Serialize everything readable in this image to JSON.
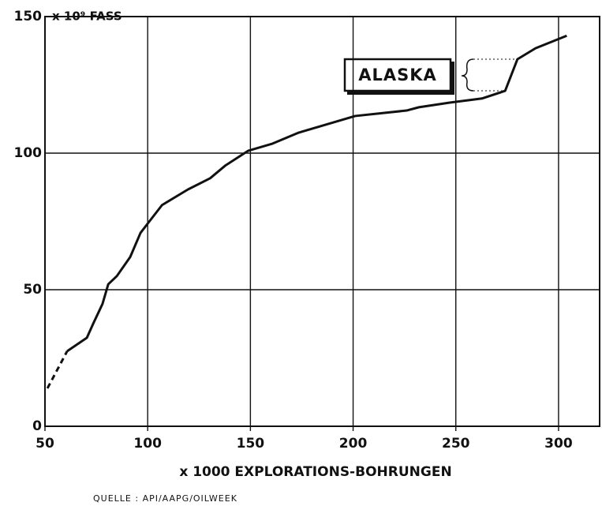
{
  "chart_data": {
    "type": "line",
    "y_label": "x 10⁹ FASS",
    "x_label": "x 1000 EXPLORATIONS-BOHRUNGEN",
    "source": "QUELLE : API/AAPG/OILWEEK",
    "annotation": "ALASKA",
    "xlim": [
      50,
      320
    ],
    "ylim": [
      0,
      150
    ],
    "xticks": [
      50,
      100,
      150,
      200,
      250,
      300
    ],
    "yticks": [
      0,
      50,
      100,
      150
    ],
    "grid": true,
    "series": [
      {
        "color": "#111111",
        "dashed": true,
        "x": [
          51.2,
          60.8
        ],
        "values": [
          13.9,
          27.5
        ]
      },
      {
        "color": "#111111",
        "dashed": false,
        "x": [
          60.8,
          70.4,
          73.5,
          78,
          80.8,
          85,
          91.5,
          96.5,
          100.4,
          107,
          119.6,
          130.4,
          137.7,
          149,
          160.8,
          173.5,
          201,
          226,
          232,
          247,
          262.7,
          274,
          280,
          288.8,
          304
        ],
        "values": [
          27.5,
          32.4,
          37.6,
          44.8,
          52,
          55,
          62,
          70.8,
          74.6,
          81,
          86.7,
          90.8,
          95.4,
          100.9,
          103.5,
          107.5,
          113.6,
          115.6,
          116.8,
          118.5,
          120,
          122.8,
          134.4,
          138.4,
          143
        ]
      }
    ]
  }
}
